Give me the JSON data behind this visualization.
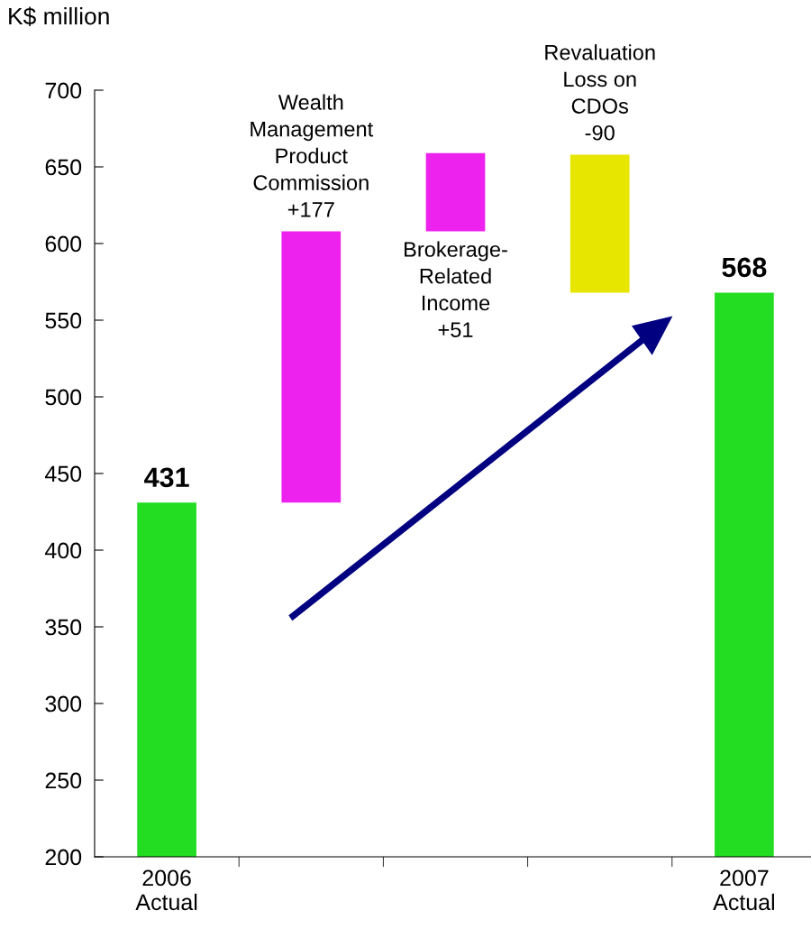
{
  "chart_data": {
    "type": "bar",
    "ylabel": "K$ million",
    "categories": [
      "2006\nActual",
      null,
      null,
      null,
      "2007\nActual"
    ],
    "base": [
      0,
      431,
      608,
      658,
      0
    ],
    "values": [
      431,
      177,
      51,
      -90,
      568
    ],
    "colors": [
      "#22dd22",
      "#ee22ee",
      "#ee22ee",
      "#e6e600",
      "#22dd22"
    ],
    "value_labels": [
      "431",
      "Wealth\nManagement\nProduct\nCommission\n+177",
      "Brokerage-\nRelated\nIncome\n+51",
      "Revaluation\nLoss on\nCDOs\n-90",
      "568"
    ],
    "ylim": [
      200,
      700
    ],
    "yticks": [
      200,
      250,
      300,
      350,
      400,
      450,
      500,
      550,
      600,
      650,
      700
    ],
    "grid": false,
    "legend": false
  }
}
